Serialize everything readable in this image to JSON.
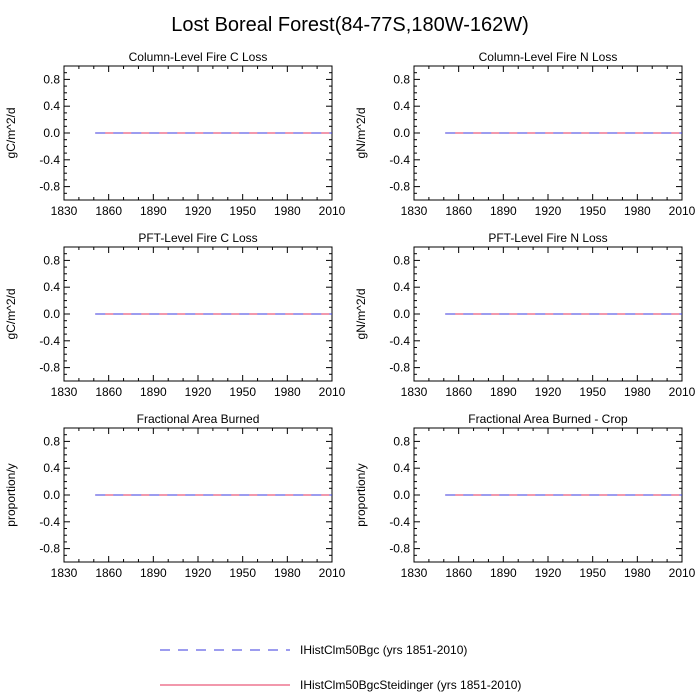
{
  "title": "Lost Boreal Forest(84-77S,180W-162W)",
  "chart_data": [
    {
      "type": "line",
      "title": "Column-Level Fire C Loss",
      "ylabel": "gC/m^2/d",
      "xlabel": "",
      "xlim": [
        1830,
        2010
      ],
      "ylim": [
        -1,
        1
      ],
      "xticks": [
        1830,
        1860,
        1890,
        1920,
        1950,
        1980,
        2010
      ],
      "yticks": [
        -0.8,
        -0.4,
        0.0,
        0.4,
        0.8
      ],
      "ytick_labels": [
        "-0.8",
        "-0.4",
        "0.0",
        "0.4",
        "0.8"
      ],
      "series": [
        {
          "name": "IHistClm50Bgc (yrs 1851-2010)",
          "color": "#3a3adf",
          "dash": "dashed",
          "x": [
            1851,
            2010
          ],
          "y": [
            0,
            0
          ]
        },
        {
          "name": "IHistClm50BgcSteidinger (yrs 1851-2010)",
          "color": "#e6325a",
          "dash": "solid",
          "x": [
            1851,
            2010
          ],
          "y": [
            0,
            0
          ]
        }
      ]
    },
    {
      "type": "line",
      "title": "Column-Level Fire N Loss",
      "ylabel": "gN/m^2/d",
      "xlabel": "",
      "xlim": [
        1830,
        2010
      ],
      "ylim": [
        -1,
        1
      ],
      "xticks": [
        1830,
        1860,
        1890,
        1920,
        1950,
        1980,
        2010
      ],
      "yticks": [
        -0.8,
        -0.4,
        0.0,
        0.4,
        0.8
      ],
      "ytick_labels": [
        "-0.8",
        "-0.4",
        "0.0",
        "0.4",
        "0.8"
      ],
      "series": [
        {
          "name": "IHistClm50Bgc (yrs 1851-2010)",
          "color": "#3a3adf",
          "dash": "dashed",
          "x": [
            1851,
            2010
          ],
          "y": [
            0,
            0
          ]
        },
        {
          "name": "IHistClm50BgcSteidinger (yrs 1851-2010)",
          "color": "#e6325a",
          "dash": "solid",
          "x": [
            1851,
            2010
          ],
          "y": [
            0,
            0
          ]
        }
      ]
    },
    {
      "type": "line",
      "title": "PFT-Level Fire C Loss",
      "ylabel": "gC/m^2/d",
      "xlabel": "",
      "xlim": [
        1830,
        2010
      ],
      "ylim": [
        -1,
        1
      ],
      "xticks": [
        1830,
        1860,
        1890,
        1920,
        1950,
        1980,
        2010
      ],
      "yticks": [
        -0.8,
        -0.4,
        0.0,
        0.4,
        0.8
      ],
      "ytick_labels": [
        "-0.8",
        "-0.4",
        "0.0",
        "0.4",
        "0.8"
      ],
      "series": [
        {
          "name": "IHistClm50Bgc (yrs 1851-2010)",
          "color": "#3a3adf",
          "dash": "dashed",
          "x": [
            1851,
            2010
          ],
          "y": [
            0,
            0
          ]
        },
        {
          "name": "IHistClm50BgcSteidinger (yrs 1851-2010)",
          "color": "#e6325a",
          "dash": "solid",
          "x": [
            1851,
            2010
          ],
          "y": [
            0,
            0
          ]
        }
      ]
    },
    {
      "type": "line",
      "title": "PFT-Level Fire N Loss",
      "ylabel": "gN/m^2/d",
      "xlabel": "",
      "xlim": [
        1830,
        2010
      ],
      "ylim": [
        -1,
        1
      ],
      "xticks": [
        1830,
        1860,
        1890,
        1920,
        1950,
        1980,
        2010
      ],
      "yticks": [
        -0.8,
        -0.4,
        0.0,
        0.4,
        0.8
      ],
      "ytick_labels": [
        "-0.8",
        "-0.4",
        "0.0",
        "0.4",
        "0.8"
      ],
      "series": [
        {
          "name": "IHistClm50Bgc (yrs 1851-2010)",
          "color": "#3a3adf",
          "dash": "dashed",
          "x": [
            1851,
            2010
          ],
          "y": [
            0,
            0
          ]
        },
        {
          "name": "IHistClm50BgcSteidinger (yrs 1851-2010)",
          "color": "#e6325a",
          "dash": "solid",
          "x": [
            1851,
            2010
          ],
          "y": [
            0,
            0
          ]
        }
      ]
    },
    {
      "type": "line",
      "title": "Fractional Area Burned",
      "ylabel": "proportion/y",
      "xlabel": "",
      "xlim": [
        1830,
        2010
      ],
      "ylim": [
        -1,
        1
      ],
      "xticks": [
        1830,
        1860,
        1890,
        1920,
        1950,
        1980,
        2010
      ],
      "yticks": [
        -0.8,
        -0.4,
        0.0,
        0.4,
        0.8
      ],
      "ytick_labels": [
        "-0.8",
        "-0.4",
        "0.0",
        "0.4",
        "0.8"
      ],
      "series": [
        {
          "name": "IHistClm50Bgc (yrs 1851-2010)",
          "color": "#3a3adf",
          "dash": "dashed",
          "x": [
            1851,
            2010
          ],
          "y": [
            0,
            0
          ]
        },
        {
          "name": "IHistClm50BgcSteidinger (yrs 1851-2010)",
          "color": "#e6325a",
          "dash": "solid",
          "x": [
            1851,
            2010
          ],
          "y": [
            0,
            0
          ]
        }
      ]
    },
    {
      "type": "line",
      "title": "Fractional Area Burned - Crop",
      "ylabel": "proportion/y",
      "xlabel": "",
      "xlim": [
        1830,
        2010
      ],
      "ylim": [
        -1,
        1
      ],
      "xticks": [
        1830,
        1860,
        1890,
        1920,
        1950,
        1980,
        2010
      ],
      "yticks": [
        -0.8,
        -0.4,
        0.0,
        0.4,
        0.8
      ],
      "ytick_labels": [
        "-0.8",
        "-0.4",
        "0.0",
        "0.4",
        "0.8"
      ],
      "series": [
        {
          "name": "IHistClm50Bgc (yrs 1851-2010)",
          "color": "#3a3adf",
          "dash": "dashed",
          "x": [
            1851,
            2010
          ],
          "y": [
            0,
            0
          ]
        },
        {
          "name": "IHistClm50BgcSteidinger (yrs 1851-2010)",
          "color": "#e6325a",
          "dash": "solid",
          "x": [
            1851,
            2010
          ],
          "y": [
            0,
            0
          ]
        }
      ]
    }
  ],
  "legend": {
    "items": [
      {
        "label": "IHistClm50Bgc (yrs 1851-2010)",
        "color": "#3a3adf",
        "dash": "dashed"
      },
      {
        "label": "IHistClm50BgcSteidinger (yrs 1851-2010)",
        "color": "#e6325a",
        "dash": "solid"
      }
    ]
  }
}
